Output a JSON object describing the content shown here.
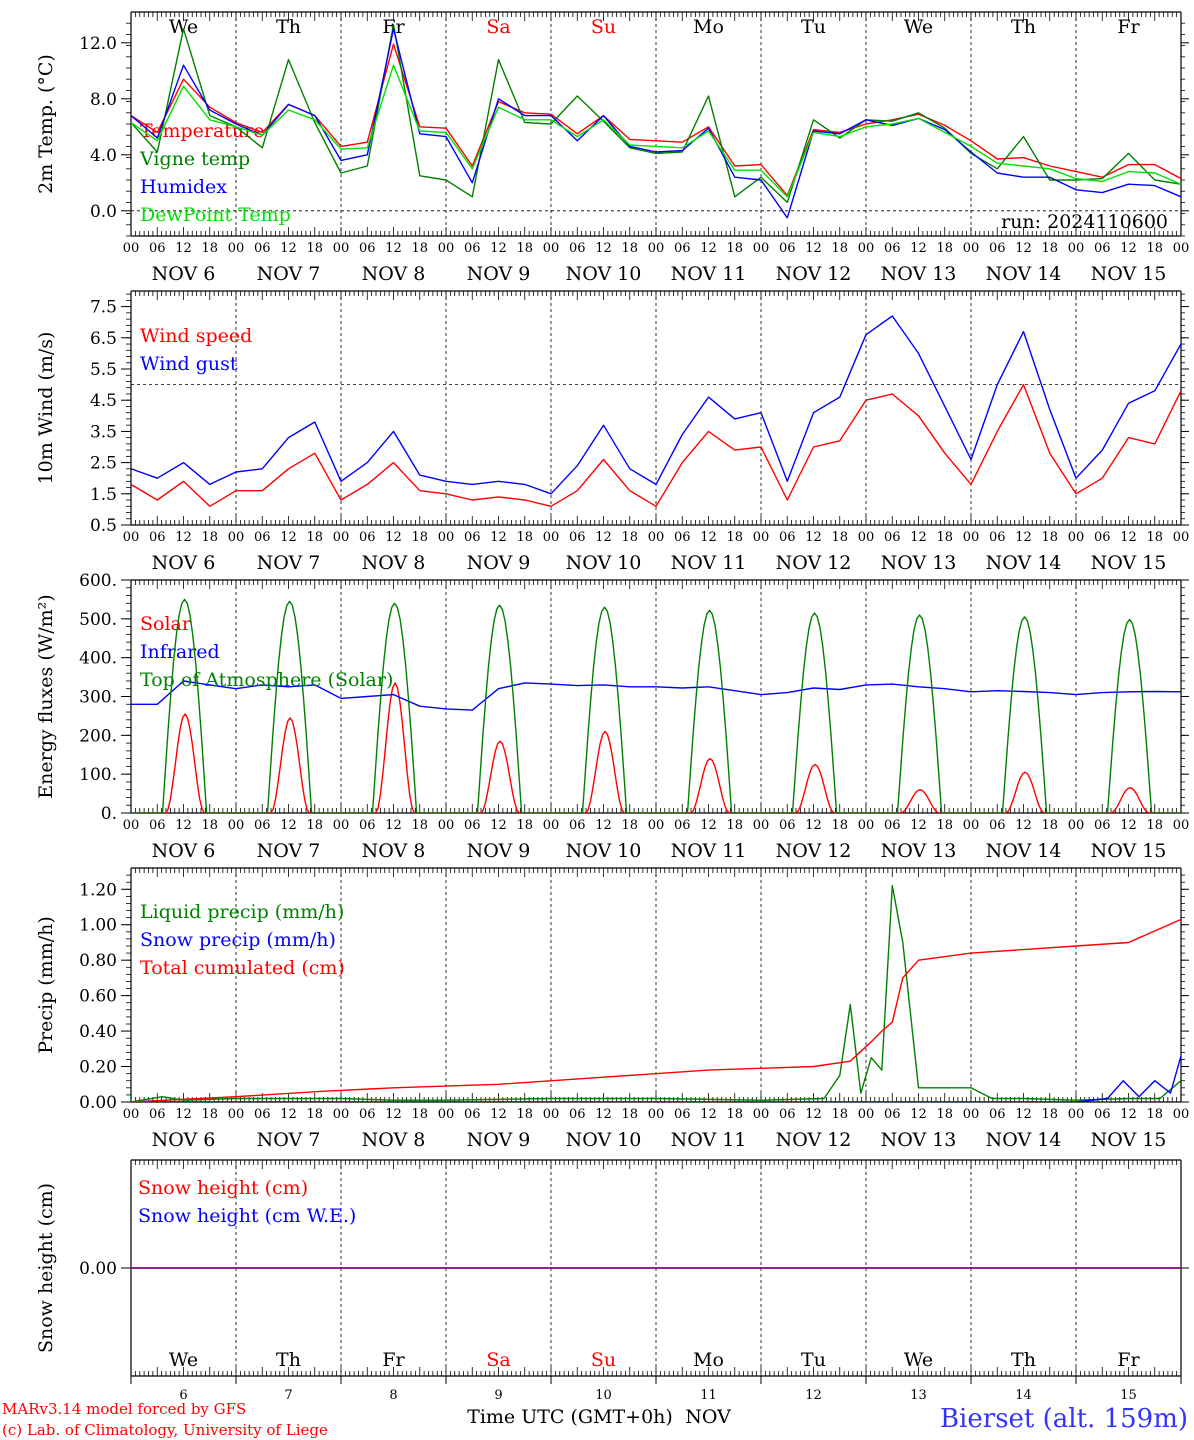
{
  "days_header": [
    {
      "label": "We",
      "color": "#000000"
    },
    {
      "label": "Th",
      "color": "#000000"
    },
    {
      "label": "Fr",
      "color": "#000000"
    },
    {
      "label": "Sa",
      "color": "#ff0000"
    },
    {
      "label": "Su",
      "color": "#ff0000"
    },
    {
      "label": "Mo",
      "color": "#000000"
    },
    {
      "label": "Tu",
      "color": "#000000"
    },
    {
      "label": "We",
      "color": "#000000"
    },
    {
      "label": "Th",
      "color": "#000000"
    },
    {
      "label": "Fr",
      "color": "#000000"
    }
  ],
  "date_labels": [
    "NOV  6",
    "NOV  7",
    "NOV  8",
    "NOV  9",
    "NOV 10",
    "NOV 11",
    "NOV 12",
    "NOV 13",
    "NOV 14",
    "NOV 15"
  ],
  "hour_labels": [
    "00",
    "06",
    "12",
    "18"
  ],
  "hour_last": "00",
  "run_label": "run: 2024110600",
  "bottom_day_numbers": [
    "6",
    "7",
    "8",
    "9",
    "10",
    "11",
    "12",
    "13",
    "14",
    "15"
  ],
  "bottom_axis_label": "Time UTC (GMT+0h)",
  "bottom_month": "NOV",
  "footer": {
    "model": "MARv3.14 model forced by GFS",
    "credit": "(c) Lab. of Climatology, University of Liege",
    "station": "Bierset (alt. 159m)"
  },
  "colors": {
    "red": "#ff0000",
    "dark_green": "#008000",
    "blue": "#0000ff",
    "light_green": "#00e000",
    "purple": "#800080"
  },
  "chart_data": [
    {
      "type": "line",
      "ylabel": "2m Temp. (°C)",
      "ylim": [
        -1.8,
        14.2
      ],
      "yticks": [
        "12.0",
        "8.0",
        "4.0",
        "0.0"
      ],
      "ytick_values": [
        12,
        8,
        4,
        0
      ],
      "reference_line": 0,
      "x_unit": "day offset from NOV 6 00 UTC",
      "x": [
        0,
        0.25,
        0.5,
        0.75,
        1,
        1.25,
        1.5,
        1.75,
        2,
        2.25,
        2.5,
        2.75,
        3,
        3.25,
        3.5,
        3.75,
        4,
        4.25,
        4.5,
        4.75,
        5,
        5.25,
        5.5,
        5.75,
        6,
        6.25,
        6.5,
        6.75,
        7,
        7.25,
        7.5,
        7.75,
        8,
        8.25,
        8.5,
        8.75,
        9,
        9.25,
        9.5,
        9.75,
        10
      ],
      "series": [
        {
          "name": "Temperature",
          "color": "#ff0000",
          "values": [
            6.8,
            5.6,
            9.4,
            7.4,
            6.3,
            5.6,
            7.6,
            6.8,
            4.6,
            4.9,
            11.9,
            6.0,
            5.9,
            3.2,
            7.8,
            7.0,
            6.9,
            5.5,
            6.8,
            5.1,
            5.0,
            4.9,
            6.0,
            3.2,
            3.3,
            1.1,
            5.8,
            5.6,
            6.2,
            6.5,
            6.9,
            6.1,
            5.0,
            3.7,
            3.8,
            3.2,
            2.8,
            2.4,
            3.3,
            3.3,
            2.3
          ]
        },
        {
          "name": "Vigne temp",
          "color": "#008000",
          "values": [
            6.3,
            4.2,
            13.0,
            6.8,
            6.0,
            4.5,
            10.8,
            6.3,
            2.7,
            3.2,
            13.3,
            2.5,
            2.2,
            1.0,
            10.8,
            6.3,
            6.2,
            8.2,
            6.4,
            4.5,
            4.1,
            4.2,
            8.2,
            1.0,
            2.4,
            0.6,
            6.5,
            5.2,
            6.5,
            6.4,
            7.0,
            5.9,
            4.1,
            3.0,
            5.3,
            2.2,
            2.2,
            2.3,
            4.1,
            2.2,
            1.9
          ]
        },
        {
          "name": "Humidex",
          "color": "#0000ff",
          "values": [
            6.8,
            5.2,
            10.4,
            7.2,
            6.2,
            5.4,
            7.6,
            6.8,
            3.6,
            4.0,
            13.0,
            5.5,
            5.3,
            2.0,
            8.0,
            6.8,
            6.8,
            5.0,
            6.8,
            4.6,
            4.2,
            4.3,
            5.9,
            2.4,
            2.2,
            -0.5,
            5.7,
            5.5,
            6.5,
            6.1,
            6.6,
            5.8,
            4.2,
            2.7,
            2.4,
            2.4,
            1.5,
            1.3,
            1.9,
            1.8,
            1.0
          ]
        },
        {
          "name": "DewPoint Temp",
          "color": "#00e000",
          "values": [
            6.3,
            5.0,
            8.9,
            6.5,
            6.0,
            5.4,
            7.2,
            6.5,
            4.4,
            4.5,
            10.4,
            5.7,
            5.6,
            3.0,
            7.4,
            6.5,
            6.5,
            5.3,
            6.5,
            4.7,
            4.6,
            4.5,
            5.7,
            2.9,
            2.9,
            1.0,
            5.6,
            5.3,
            6.0,
            6.2,
            6.6,
            5.6,
            4.6,
            3.4,
            3.2,
            3.0,
            2.3,
            2.1,
            2.8,
            2.7,
            1.9
          ]
        }
      ]
    },
    {
      "type": "line",
      "ylabel": "10m Wind (m/s)",
      "ylim": [
        0.5,
        8.0
      ],
      "yticks": [
        "7.5",
        "6.5",
        "5.5",
        "4.5",
        "3.5",
        "2.5",
        "1.5",
        "0.5"
      ],
      "ytick_values": [
        7.5,
        6.5,
        5.5,
        4.5,
        3.5,
        2.5,
        1.5,
        0.5
      ],
      "reference_line": 5,
      "x_unit": "day offset from NOV 6 00 UTC",
      "x": [
        0,
        0.25,
        0.5,
        0.75,
        1,
        1.25,
        1.5,
        1.75,
        2,
        2.25,
        2.5,
        2.75,
        3,
        3.25,
        3.5,
        3.75,
        4,
        4.25,
        4.5,
        4.75,
        5,
        5.25,
        5.5,
        5.75,
        6,
        6.25,
        6.5,
        6.75,
        7,
        7.25,
        7.5,
        7.75,
        8,
        8.25,
        8.5,
        8.75,
        9,
        9.25,
        9.5,
        9.75,
        10
      ],
      "series": [
        {
          "name": "Wind speed",
          "color": "#ff0000",
          "values": [
            1.8,
            1.3,
            1.9,
            1.1,
            1.6,
            1.6,
            2.3,
            2.8,
            1.3,
            1.8,
            2.5,
            1.6,
            1.5,
            1.3,
            1.4,
            1.3,
            1.1,
            1.6,
            2.6,
            1.6,
            1.1,
            2.5,
            3.5,
            2.9,
            3.0,
            1.3,
            3.0,
            3.2,
            4.5,
            4.7,
            4.0,
            2.8,
            1.8,
            3.5,
            5.0,
            2.8,
            1.5,
            2.0,
            3.3,
            3.1,
            4.8
          ]
        },
        {
          "name": "Wind gust",
          "color": "#0000ff",
          "values": [
            2.3,
            2.0,
            2.5,
            1.8,
            2.2,
            2.3,
            3.3,
            3.8,
            1.9,
            2.5,
            3.5,
            2.1,
            1.9,
            1.8,
            1.9,
            1.8,
            1.5,
            2.4,
            3.7,
            2.3,
            1.8,
            3.4,
            4.6,
            3.9,
            4.1,
            1.9,
            4.1,
            4.6,
            6.6,
            7.2,
            6.0,
            4.3,
            2.6,
            5.0,
            6.7,
            4.2,
            2.0,
            2.9,
            4.4,
            4.8,
            6.3
          ]
        }
      ]
    },
    {
      "type": "line",
      "ylabel": "Energy fluxes (W/m²)",
      "ylim": [
        0,
        600
      ],
      "yticks": [
        "600.",
        "500.",
        "400.",
        "300.",
        "200.",
        "100.",
        "0."
      ],
      "ytick_values": [
        600,
        500,
        400,
        300,
        200,
        100,
        0
      ],
      "x_unit": "day offset from NOV 6 00 UTC",
      "series": [
        {
          "name": "Solar",
          "color": "#ff0000",
          "daily_peak_W_m2": [
            255,
            245,
            335,
            185,
            210,
            140,
            125,
            60,
            105,
            65
          ]
        },
        {
          "name": "Infrared",
          "color": "#0000ff",
          "x": [
            0,
            0.25,
            0.5,
            0.75,
            1,
            1.25,
            1.5,
            1.75,
            2,
            2.25,
            2.5,
            2.75,
            3,
            3.25,
            3.5,
            3.75,
            4,
            4.25,
            4.5,
            4.75,
            5,
            5.25,
            5.5,
            5.75,
            6,
            6.25,
            6.5,
            6.75,
            7,
            7.25,
            7.5,
            7.75,
            8,
            8.25,
            8.5,
            8.75,
            9,
            9.25,
            9.5,
            9.75,
            10
          ],
          "values": [
            280,
            280,
            340,
            330,
            320,
            330,
            325,
            330,
            295,
            300,
            305,
            275,
            268,
            265,
            320,
            335,
            332,
            328,
            330,
            325,
            325,
            322,
            325,
            315,
            305,
            310,
            322,
            318,
            330,
            332,
            325,
            320,
            312,
            315,
            313,
            310,
            305,
            310,
            312,
            313,
            312
          ]
        },
        {
          "name": "Top of Atmosphere (Solar)",
          "color": "#008000",
          "daily_peak_W_m2": [
            550,
            545,
            540,
            535,
            530,
            522,
            515,
            510,
            505,
            498
          ]
        }
      ]
    },
    {
      "type": "line",
      "ylabel": "Precip (mm/h)",
      "ylim": [
        0,
        1.32
      ],
      "yticks": [
        "1.20",
        "1.00",
        "0.80",
        "0.60",
        "0.40",
        "0.20",
        "0.00"
      ],
      "ytick_values": [
        1.2,
        1.0,
        0.8,
        0.6,
        0.4,
        0.2,
        0
      ],
      "x_unit": "day offset from NOV 6 00 UTC",
      "series": [
        {
          "name": "Liquid precip (mm/h)",
          "color": "#008000",
          "x": [
            0,
            0.3,
            0.5,
            1,
            1.5,
            2,
            2.5,
            3,
            4,
            5,
            6,
            6.6,
            6.75,
            6.85,
            6.95,
            7.05,
            7.15,
            7.25,
            7.35,
            7.5,
            7.7,
            8,
            8.2,
            8.5,
            9,
            9.5,
            9.8,
            10
          ],
          "values": [
            0,
            0.03,
            0.01,
            0.02,
            0.02,
            0.02,
            0.01,
            0.01,
            0.02,
            0.02,
            0.01,
            0.02,
            0.15,
            0.55,
            0.05,
            0.25,
            0.18,
            1.22,
            0.9,
            0.08,
            0.08,
            0.08,
            0.02,
            0.02,
            0.01,
            0.02,
            0.02,
            0.12
          ]
        },
        {
          "name": "Snow precip (mm/h)",
          "color": "#0000ff",
          "x": [
            0,
            9.0,
            9.3,
            9.45,
            9.6,
            9.75,
            9.9,
            10
          ],
          "values": [
            0,
            0,
            0.02,
            0.12,
            0.03,
            0.12,
            0.05,
            0.26
          ]
        },
        {
          "name": "Total cumulated (cm)",
          "color": "#ff0000",
          "x": [
            0,
            1,
            1.8,
            2.5,
            3.5,
            4.5,
            5.5,
            6.5,
            6.85,
            7.05,
            7.15,
            7.25,
            7.35,
            7.5,
            8,
            9,
            9.5,
            10
          ],
          "values": [
            0,
            0.03,
            0.06,
            0.08,
            0.1,
            0.14,
            0.18,
            0.2,
            0.23,
            0.34,
            0.4,
            0.45,
            0.7,
            0.8,
            0.84,
            0.88,
            0.9,
            1.03
          ]
        }
      ]
    },
    {
      "type": "line",
      "ylabel": "Snow height (cm)",
      "yticks": [
        "0.00"
      ],
      "ytick_values": [
        0
      ],
      "ylim": [
        -1,
        1
      ],
      "series": [
        {
          "name": "Snow height (cm)",
          "color": "#ff0000",
          "values": [
            0,
            0
          ]
        },
        {
          "name": "Snow height (cm W.E.)",
          "color": "#0000ff",
          "values": [
            0,
            0
          ]
        }
      ],
      "x": [
        0,
        10
      ]
    }
  ]
}
